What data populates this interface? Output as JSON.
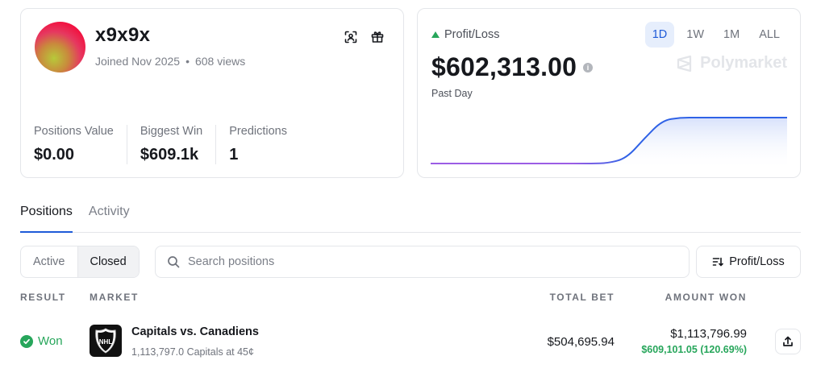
{
  "profile": {
    "username": "x9x9x",
    "joined": "Joined Nov 2025",
    "views": "608 views",
    "stats": [
      {
        "label": "Positions Value",
        "value": "$0.00"
      },
      {
        "label": "Biggest Win",
        "value": "$609.1k"
      },
      {
        "label": "Predictions",
        "value": "1"
      }
    ]
  },
  "pnl": {
    "label": "Profit/Loss",
    "value": "$602,313.00",
    "period": "Past Day",
    "watermark": "Polymarket",
    "ranges": [
      "1D",
      "1W",
      "1M",
      "ALL"
    ],
    "active_range": "1D",
    "trend_color": "#27a65b"
  },
  "chart_data": {
    "type": "area",
    "x": [
      0,
      1,
      2,
      3,
      4,
      5,
      6,
      7,
      8,
      9,
      10,
      11,
      12,
      13,
      14,
      15,
      16,
      17,
      18,
      19,
      20
    ],
    "values": [
      0,
      0,
      0,
      0,
      0,
      0,
      0,
      0,
      0,
      0,
      0.01,
      0.12,
      0.55,
      0.94,
      1,
      1,
      1,
      1,
      1,
      1,
      1
    ],
    "start_color": "#9b5de5",
    "end_color": "#2f62e6",
    "fill_color": "#dfe6fb"
  },
  "tabs": [
    "Positions",
    "Activity"
  ],
  "active_tab": "Positions",
  "filter": {
    "options": [
      "Active",
      "Closed"
    ],
    "active": "Closed"
  },
  "search": {
    "placeholder": "Search positions",
    "value": ""
  },
  "sort": {
    "label": "Profit/Loss"
  },
  "table": {
    "headers": {
      "result": "RESULT",
      "market": "MARKET",
      "total_bet": "TOTAL BET",
      "amount_won": "AMOUNT WON"
    },
    "rows": [
      {
        "result": "Won",
        "market": "Capitals vs. Canadiens",
        "detail": "1,113,797.0 Capitals at 45¢",
        "total_bet": "$504,695.94",
        "amount_won": "$1,113,796.99",
        "gain": "$609,101.05 (120.69%)",
        "logo_text": "NHL"
      }
    ]
  }
}
